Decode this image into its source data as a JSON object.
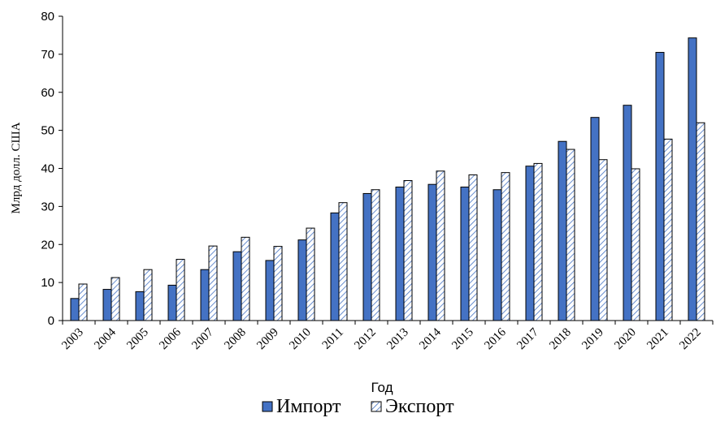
{
  "chart_data": {
    "type": "bar",
    "title": "",
    "xlabel": "Год",
    "ylabel": "Млрд долл. США",
    "ylim": [
      0,
      80
    ],
    "yticks": [
      0,
      10,
      20,
      30,
      40,
      50,
      60,
      70,
      80
    ],
    "grid": false,
    "legend_position": "bottom",
    "categories": [
      "2003",
      "2004",
      "2005",
      "2006",
      "2007",
      "2008",
      "2009",
      "2010",
      "2011",
      "2012",
      "2013",
      "2014",
      "2015",
      "2016",
      "2017",
      "2018",
      "2019",
      "2020",
      "2021",
      "2022"
    ],
    "series": [
      {
        "name": "Импорт",
        "color": "#4472c4",
        "pattern": "solid",
        "values": [
          5.8,
          8.2,
          7.6,
          9.3,
          13.4,
          18.1,
          15.8,
          21.2,
          28.3,
          33.4,
          35.1,
          35.8,
          35.1,
          34.4,
          40.6,
          47.1,
          53.4,
          56.6,
          70.5,
          74.3
        ]
      },
      {
        "name": "Экспорт",
        "color": "#4472c4",
        "pattern": "hatched",
        "values": [
          9.6,
          11.3,
          13.4,
          16.1,
          19.6,
          21.9,
          19.5,
          24.3,
          31.0,
          34.4,
          36.8,
          39.3,
          38.3,
          38.9,
          41.3,
          45.0,
          42.3,
          39.9,
          47.7,
          52.0
        ]
      }
    ]
  }
}
